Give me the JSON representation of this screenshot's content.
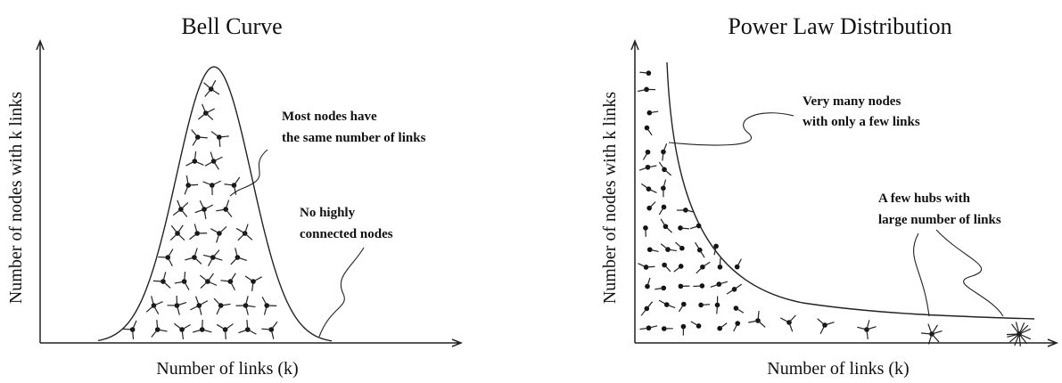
{
  "panels": [
    {
      "title": "Bell Curve",
      "y_axis_label": "Number of nodes with k links",
      "x_axis_label": "Number of links (k)",
      "annotations": [
        {
          "lines": [
            "Most nodes have",
            "the same number of links"
          ]
        },
        {
          "lines": [
            "No highly",
            "connected nodes"
          ]
        }
      ]
    },
    {
      "title": "Power Law Distribution",
      "y_axis_label": "Number of nodes with k links",
      "x_axis_label": "Number of links (k)",
      "annotations": [
        {
          "lines": [
            "Very many nodes",
            "with only a few links"
          ]
        },
        {
          "lines": [
            "A few hubs with",
            "large number of links"
          ]
        }
      ]
    }
  ]
}
